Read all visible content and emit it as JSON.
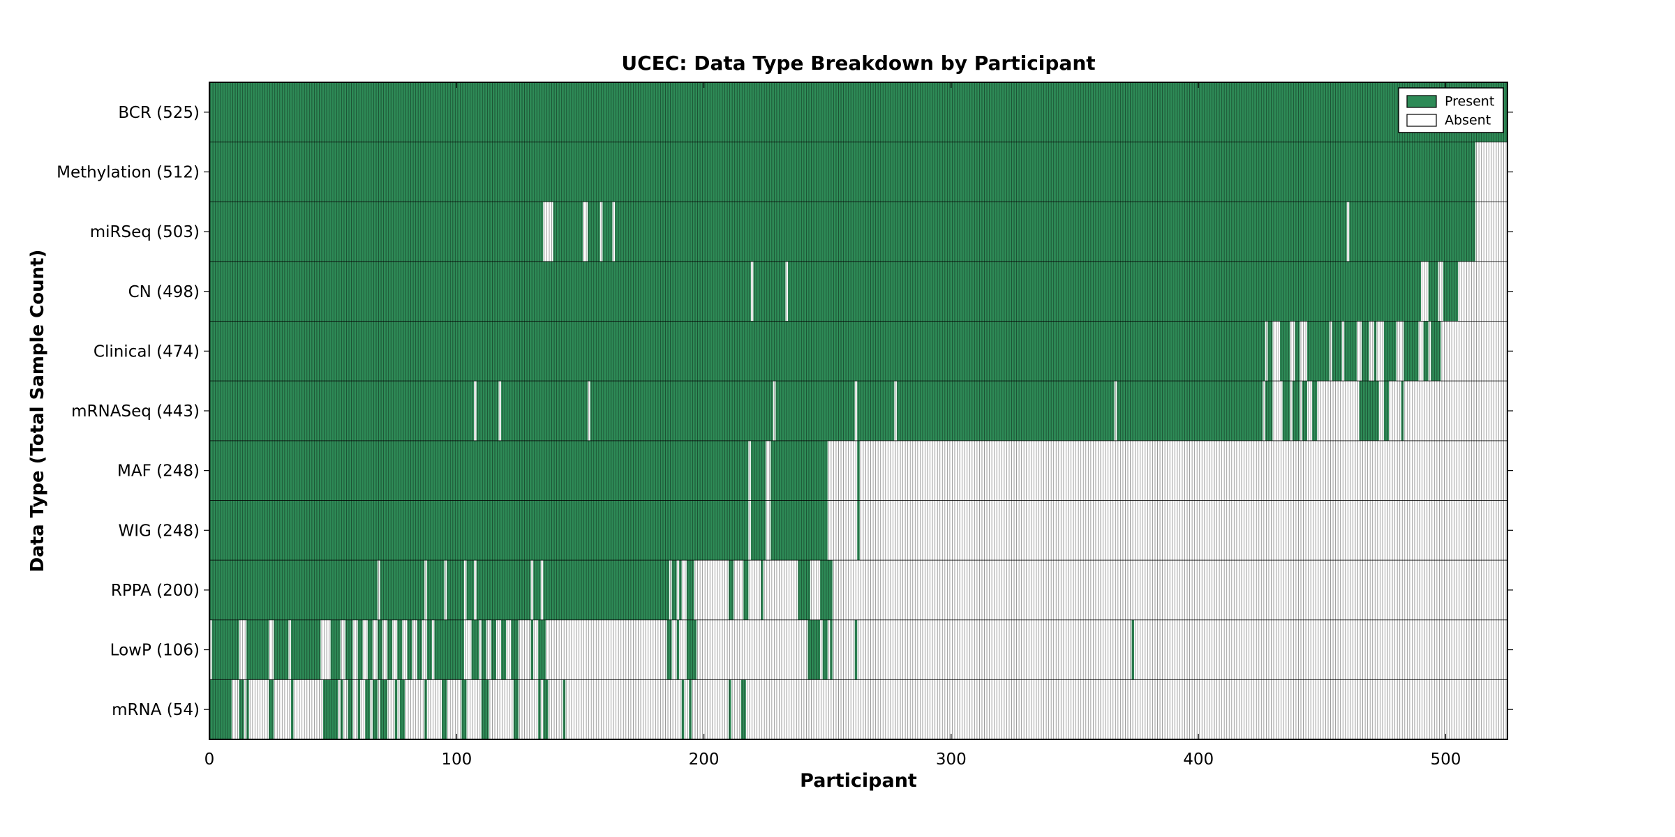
{
  "page": {
    "background": "#ffffff"
  },
  "chart_data": {
    "type": "heatmap",
    "title": "UCEC: Data Type Breakdown by Participant",
    "xlabel": "Participant",
    "ylabel": "Data Type (Total Sample Count)",
    "xlim": [
      0,
      525
    ],
    "x_ticks": [
      0,
      100,
      200,
      300,
      400,
      500
    ],
    "x_tick_labels": [
      "0",
      "100",
      "200",
      "300",
      "400",
      "500"
    ],
    "grid": "per-participant cell edges",
    "legend": {
      "position": "upper right",
      "entries": [
        {
          "label": "Present",
          "color": "#2e8b57"
        },
        {
          "label": "Absent",
          "color": "#ffffff"
        }
      ]
    },
    "colors": {
      "present": "#2e8b57",
      "absent": "#ffffff",
      "cell_edge": "#000000",
      "frame": "#000000",
      "row_divider": "#000000"
    },
    "rows": [
      {
        "name": "BCR",
        "total": 525,
        "label": "BCR (525)",
        "present_segments": [
          [
            0,
            525
          ]
        ]
      },
      {
        "name": "Methylation",
        "total": 512,
        "label": "Methylation (512)",
        "present_segments": [
          [
            0,
            512
          ]
        ]
      },
      {
        "name": "miRSeq",
        "total": 503,
        "label": "miRSeq (503)",
        "present_segments": [
          [
            0,
            135
          ],
          [
            139,
            151
          ],
          [
            153,
            158
          ],
          [
            159,
            163
          ],
          [
            164,
            460
          ],
          [
            461,
            512
          ]
        ]
      },
      {
        "name": "CN",
        "total": 498,
        "label": "CN (498)",
        "present_segments": [
          [
            0,
            219
          ],
          [
            220,
            233
          ],
          [
            234,
            490
          ],
          [
            493,
            497
          ],
          [
            499,
            505
          ]
        ]
      },
      {
        "name": "Clinical",
        "total": 474,
        "label": "Clinical (474)",
        "present_segments": [
          [
            0,
            427
          ],
          [
            428,
            430
          ],
          [
            433,
            437
          ],
          [
            439,
            441
          ],
          [
            444,
            453
          ],
          [
            454,
            458
          ],
          [
            459,
            464
          ],
          [
            466,
            469
          ],
          [
            471,
            472
          ],
          [
            475,
            480
          ],
          [
            483,
            489
          ],
          [
            491,
            493
          ],
          [
            494,
            498
          ]
        ]
      },
      {
        "name": "mRNASeq",
        "total": 443,
        "label": "mRNASeq (443)",
        "present_segments": [
          [
            0,
            107
          ],
          [
            108,
            117
          ],
          [
            118,
            153
          ],
          [
            154,
            228
          ],
          [
            229,
            261
          ],
          [
            262,
            277
          ],
          [
            278,
            366
          ],
          [
            367,
            426
          ],
          [
            427,
            430
          ],
          [
            434,
            437
          ],
          [
            438,
            441
          ],
          [
            442,
            444
          ],
          [
            446,
            448
          ],
          [
            465,
            473
          ],
          [
            475,
            477
          ],
          [
            482,
            483
          ]
        ]
      },
      {
        "name": "MAF",
        "total": 248,
        "label": "MAF (248)",
        "present_segments": [
          [
            0,
            218
          ],
          [
            219,
            225
          ],
          [
            227,
            250
          ],
          [
            262,
            263
          ]
        ]
      },
      {
        "name": "WIG",
        "total": 248,
        "label": "WIG (248)",
        "present_segments": [
          [
            0,
            218
          ],
          [
            219,
            225
          ],
          [
            227,
            250
          ],
          [
            262,
            263
          ]
        ]
      },
      {
        "name": "RPPA",
        "total": 200,
        "label": "RPPA (200)",
        "present_segments": [
          [
            0,
            68
          ],
          [
            69,
            87
          ],
          [
            88,
            95
          ],
          [
            96,
            103
          ],
          [
            104,
            107
          ],
          [
            108,
            130
          ],
          [
            131,
            134
          ],
          [
            135,
            186
          ],
          [
            187,
            189
          ],
          [
            190,
            191
          ],
          [
            193,
            196
          ],
          [
            210,
            212
          ],
          [
            216,
            218
          ],
          [
            223,
            224
          ],
          [
            238,
            243
          ],
          [
            247,
            252
          ]
        ]
      },
      {
        "name": "LowP",
        "total": 106,
        "label": "LowP (106)",
        "present_segments": [
          [
            1,
            12
          ],
          [
            15,
            24
          ],
          [
            26,
            32
          ],
          [
            33,
            45
          ],
          [
            49,
            53
          ],
          [
            55,
            58
          ],
          [
            60,
            62
          ],
          [
            64,
            66
          ],
          [
            68,
            70
          ],
          [
            72,
            74
          ],
          [
            76,
            78
          ],
          [
            80,
            82
          ],
          [
            84,
            86
          ],
          [
            88,
            90
          ],
          [
            91,
            103
          ],
          [
            106,
            109
          ],
          [
            110,
            112
          ],
          [
            114,
            116
          ],
          [
            118,
            120
          ],
          [
            122,
            125
          ],
          [
            130,
            131
          ],
          [
            133,
            136
          ],
          [
            185,
            187
          ],
          [
            189,
            190
          ],
          [
            193,
            197
          ],
          [
            242,
            247
          ],
          [
            248,
            250
          ],
          [
            251,
            252
          ],
          [
            261,
            262
          ],
          [
            373,
            374
          ]
        ]
      },
      {
        "name": "mRNA",
        "total": 54,
        "label": "mRNA (54)",
        "present_segments": [
          [
            0,
            9
          ],
          [
            12,
            14
          ],
          [
            15,
            16
          ],
          [
            24,
            26
          ],
          [
            33,
            34
          ],
          [
            46,
            52
          ],
          [
            53,
            54
          ],
          [
            56,
            58
          ],
          [
            60,
            61
          ],
          [
            63,
            65
          ],
          [
            66,
            68
          ],
          [
            69,
            72
          ],
          [
            75,
            76
          ],
          [
            77,
            79
          ],
          [
            87,
            88
          ],
          [
            94,
            96
          ],
          [
            102,
            104
          ],
          [
            110,
            113
          ],
          [
            123,
            125
          ],
          [
            133,
            134
          ],
          [
            135,
            137
          ],
          [
            143,
            144
          ],
          [
            191,
            192
          ],
          [
            194,
            195
          ],
          [
            210,
            211
          ],
          [
            215,
            217
          ]
        ]
      }
    ]
  }
}
